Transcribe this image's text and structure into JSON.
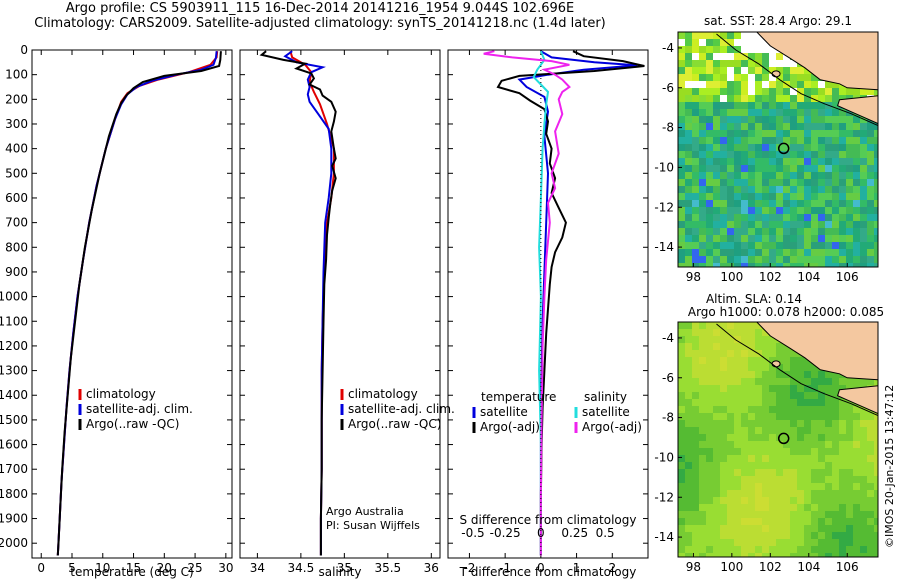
{
  "header": {
    "line1": "Argo profile: CS 5903911_115 16-Dec-2014 20141216_1954 9.044S 102.696E",
    "line2": "Climatology: CARS2009. Satellite-adjusted climatology: synTS_20141218.nc (1.4d later)"
  },
  "colors": {
    "climatology": "#e00000",
    "satellite": "#0000dd",
    "argo": "#000000",
    "argo_salinity": "#ee22ee",
    "satellite_salinity": "#22dddd",
    "ocean_dark": "#22aa77",
    "land": "#f4c8a0",
    "gap": "#ffffff"
  },
  "depth_axis": {
    "ticks": [
      0,
      100,
      200,
      300,
      400,
      500,
      600,
      700,
      800,
      900,
      1000,
      1100,
      1200,
      1300,
      1400,
      1500,
      1600,
      1700,
      1800,
      1900,
      2000
    ],
    "ylim": [
      2060,
      0
    ]
  },
  "chart_data": [
    {
      "type": "line",
      "panel": "temperature",
      "xlabel": "temperature (deg C)",
      "xlim": [
        -1.5,
        31
      ],
      "xticks": [
        0,
        5,
        10,
        15,
        20,
        25,
        30
      ],
      "legend": [
        "climatology",
        "satellite-adj. clim.",
        "Argo(..raw -QC)"
      ],
      "legend_position": "lower-center",
      "series": [
        {
          "name": "climatology",
          "points": [
            [
              28.6,
              5
            ],
            [
              28.5,
              30
            ],
            [
              27.5,
              60
            ],
            [
              24,
              90
            ],
            [
              19,
              120
            ],
            [
              16,
              145
            ],
            [
              14,
              175
            ],
            [
              13,
              210
            ],
            [
              12,
              280
            ],
            [
              10.5,
              400
            ],
            [
              9,
              550
            ],
            [
              7.8,
              700
            ],
            [
              6.8,
              850
            ],
            [
              5.9,
              1000
            ],
            [
              5.2,
              1150
            ],
            [
              4.6,
              1300
            ],
            [
              4.1,
              1450
            ],
            [
              3.7,
              1600
            ],
            [
              3.3,
              1750
            ],
            [
              3,
              1900
            ],
            [
              2.7,
              2050
            ]
          ]
        },
        {
          "name": "satellite-adj. clim.",
          "points": [
            [
              28.5,
              5
            ],
            [
              28.4,
              30
            ],
            [
              28,
              60
            ],
            [
              26,
              80
            ],
            [
              22,
              100
            ],
            [
              18,
              125
            ],
            [
              15.5,
              150
            ],
            [
              14,
              180
            ],
            [
              13,
              220
            ],
            [
              12,
              280
            ],
            [
              10.5,
              400
            ],
            [
              9,
              550
            ],
            [
              7.8,
              700
            ],
            [
              6.8,
              850
            ],
            [
              5.9,
              1000
            ],
            [
              5.2,
              1150
            ],
            [
              4.6,
              1300
            ],
            [
              4.1,
              1450
            ],
            [
              3.7,
              1600
            ],
            [
              3.3,
              1750
            ],
            [
              3,
              1900
            ],
            [
              2.7,
              2050
            ]
          ]
        },
        {
          "name": "Argo(..raw -QC)",
          "points": [
            [
              29.2,
              5
            ],
            [
              29.1,
              40
            ],
            [
              28.9,
              65
            ],
            [
              26,
              85
            ],
            [
              20,
              105
            ],
            [
              16.5,
              130
            ],
            [
              15,
              155
            ],
            [
              13.8,
              185
            ],
            [
              13,
              215
            ],
            [
              12.2,
              260
            ],
            [
              11,
              350
            ],
            [
              9.5,
              500
            ],
            [
              8.2,
              650
            ],
            [
              7.1,
              800
            ],
            [
              6.2,
              950
            ],
            [
              5.5,
              1100
            ],
            [
              4.8,
              1250
            ],
            [
              4.3,
              1400
            ],
            [
              3.8,
              1550
            ],
            [
              3.4,
              1700
            ],
            [
              3.1,
              1850
            ],
            [
              2.8,
              2000
            ],
            [
              2.7,
              2050
            ]
          ]
        }
      ]
    },
    {
      "type": "line",
      "panel": "salinity",
      "xlabel": "salinity",
      "xlim": [
        33.8,
        36.1
      ],
      "xticks": [
        34,
        34.5,
        35,
        35.5,
        36
      ],
      "xtick_labels": [
        "34",
        "34.5",
        "35",
        "35.5",
        "36"
      ],
      "legend": [
        "climatology",
        "satellite-adj. clim.",
        "Argo(..raw -QC)"
      ],
      "legend_position": "lower-right",
      "annotation": [
        "Argo Australia",
        "PI: Susan Wijffels"
      ],
      "series": [
        {
          "name": "climatology",
          "points": [
            [
              34.38,
              5
            ],
            [
              34.4,
              30
            ],
            [
              34.55,
              60
            ],
            [
              34.62,
              90
            ],
            [
              34.6,
              130
            ],
            [
              34.65,
              170
            ],
            [
              34.72,
              220
            ],
            [
              34.8,
              300
            ],
            [
              34.88,
              400
            ],
            [
              34.88,
              500
            ],
            [
              34.85,
              600
            ],
            [
              34.8,
              700
            ],
            [
              34.77,
              900
            ],
            [
              34.75,
              1100
            ],
            [
              34.74,
              1300
            ],
            [
              34.74,
              1500
            ],
            [
              34.74,
              1700
            ],
            [
              34.73,
              1900
            ],
            [
              34.73,
              2050
            ]
          ]
        },
        {
          "name": "satellite-adj. clim.",
          "points": [
            [
              34.4,
              5
            ],
            [
              34.32,
              25
            ],
            [
              34.45,
              50
            ],
            [
              34.75,
              70
            ],
            [
              34.62,
              90
            ],
            [
              34.58,
              120
            ],
            [
              34.6,
              150
            ],
            [
              34.58,
              180
            ],
            [
              34.6,
              210
            ],
            [
              34.7,
              260
            ],
            [
              34.82,
              320
            ],
            [
              34.85,
              400
            ],
            [
              34.85,
              500
            ],
            [
              34.82,
              600
            ],
            [
              34.78,
              700
            ],
            [
              34.76,
              900
            ],
            [
              34.75,
              1100
            ],
            [
              34.74,
              1300
            ],
            [
              34.74,
              1500
            ],
            [
              34.74,
              1700
            ],
            [
              34.73,
              1900
            ],
            [
              34.73,
              2050
            ]
          ]
        },
        {
          "name": "Argo(..raw -QC)",
          "points": [
            [
              34.1,
              5
            ],
            [
              34.05,
              20
            ],
            [
              34.3,
              40
            ],
            [
              34.55,
              55
            ],
            [
              34.45,
              75
            ],
            [
              34.62,
              95
            ],
            [
              34.65,
              115
            ],
            [
              34.6,
              140
            ],
            [
              34.72,
              160
            ],
            [
              34.75,
              185
            ],
            [
              34.85,
              210
            ],
            [
              34.9,
              250
            ],
            [
              34.88,
              290
            ],
            [
              34.85,
              330
            ],
            [
              34.88,
              400
            ],
            [
              34.9,
              440
            ],
            [
              34.86,
              470
            ],
            [
              34.9,
              520
            ],
            [
              34.86,
              570
            ],
            [
              34.84,
              620
            ],
            [
              34.82,
              680
            ],
            [
              34.8,
              750
            ],
            [
              34.79,
              850
            ],
            [
              34.77,
              950
            ],
            [
              34.76,
              1100
            ],
            [
              34.75,
              1300
            ],
            [
              34.74,
              1500
            ],
            [
              34.74,
              1700
            ],
            [
              34.73,
              1900
            ],
            [
              34.73,
              2050
            ]
          ]
        }
      ]
    },
    {
      "type": "line",
      "panel": "difference",
      "xlabel": "T difference from climatology",
      "xlabel_top": "S difference from climatology",
      "xlim": [
        -2.6,
        3.0
      ],
      "xticks": [
        -2,
        -1,
        0,
        1,
        2
      ],
      "sticks_pos": [
        -1.9,
        -1.0,
        0,
        0.95,
        1.8
      ],
      "sticks_labels": [
        "-0.5",
        "-0.25",
        "0",
        "0.25",
        "0.5"
      ],
      "legend": {
        "left_header": "temperature",
        "right_header": "salinity",
        "left": [
          "satellite",
          "Argo(-adj)"
        ],
        "right": [
          "satellite",
          "Argo(-adj)"
        ]
      },
      "legend_position": "lower-center",
      "series": [
        {
          "name": "T satellite",
          "points": [
            [
              0,
              5
            ],
            [
              0.3,
              30
            ],
            [
              1.5,
              50
            ],
            [
              2.7,
              62
            ],
            [
              1.2,
              80
            ],
            [
              0.2,
              100
            ],
            [
              -0.6,
              120
            ],
            [
              -0.4,
              150
            ],
            [
              0.1,
              190
            ],
            [
              0.2,
              250
            ],
            [
              0.1,
              350
            ],
            [
              0.2,
              500
            ],
            [
              0.15,
              700
            ],
            [
              0.1,
              900
            ],
            [
              0.05,
              1100
            ],
            [
              0.02,
              1300
            ],
            [
              0,
              1600
            ],
            [
              0,
              2050
            ]
          ]
        },
        {
          "name": "T Argo(-adj)",
          "points": [
            [
              0.9,
              5
            ],
            [
              1.2,
              25
            ],
            [
              2.3,
              45
            ],
            [
              2.6,
              55
            ],
            [
              2.9,
              65
            ],
            [
              1.5,
              85
            ],
            [
              -0.6,
              105
            ],
            [
              -1.1,
              125
            ],
            [
              -1.2,
              150
            ],
            [
              -0.6,
              175
            ],
            [
              -0.3,
              205
            ],
            [
              0.1,
              240
            ],
            [
              0.2,
              290
            ],
            [
              0.15,
              340
            ],
            [
              0.3,
              400
            ],
            [
              0.25,
              460
            ],
            [
              0.4,
              520
            ],
            [
              0.3,
              580
            ],
            [
              0.5,
              640
            ],
            [
              0.7,
              700
            ],
            [
              0.6,
              760
            ],
            [
              0.4,
              820
            ],
            [
              0.3,
              880
            ],
            [
              0.25,
              950
            ],
            [
              0.2,
              1050
            ],
            [
              0.15,
              1150
            ],
            [
              0.1,
              1300
            ],
            [
              0.05,
              1450
            ],
            [
              0.02,
              1600
            ],
            [
              0,
              1800
            ],
            [
              0,
              2050
            ]
          ]
        },
        {
          "name": "S satellite",
          "points": [
            [
              0,
              5
            ],
            [
              0.1,
              40
            ],
            [
              -0.1,
              80
            ],
            [
              -0.2,
              110
            ],
            [
              0,
              140
            ],
            [
              0.2,
              170
            ],
            [
              0.15,
              220
            ],
            [
              0.1,
              300
            ],
            [
              0.05,
              400
            ],
            [
              0,
              600
            ],
            [
              -0.05,
              800
            ],
            [
              0,
              1000
            ],
            [
              -0.05,
              1300
            ],
            [
              0,
              1600
            ],
            [
              0,
              2050
            ]
          ]
        },
        {
          "name": "S Argo(-adj)",
          "points": [
            [
              -1.3,
              5
            ],
            [
              -1.6,
              15
            ],
            [
              -0.8,
              30
            ],
            [
              0.3,
              45
            ],
            [
              0.8,
              60
            ],
            [
              0.1,
              80
            ],
            [
              0.4,
              100
            ],
            [
              0.6,
              120
            ],
            [
              0.8,
              150
            ],
            [
              0.6,
              170
            ],
            [
              0.5,
              200
            ],
            [
              0.6,
              260
            ],
            [
              0.4,
              330
            ],
            [
              0.5,
              420
            ],
            [
              0.3,
              500
            ],
            [
              0.4,
              560
            ],
            [
              0.2,
              620
            ],
            [
              0.25,
              700
            ],
            [
              0.15,
              850
            ],
            [
              0.1,
              1000
            ],
            [
              0.05,
              1200
            ],
            [
              0.02,
              1500
            ],
            [
              0,
              1800
            ],
            [
              0,
              2050
            ]
          ]
        }
      ]
    },
    {
      "type": "heatmap",
      "panel": "sst_map",
      "title": "sat. SST: 28.4  Argo: 29.1",
      "xlim": [
        97.2,
        107.6
      ],
      "ylim": [
        -15,
        -3.2
      ],
      "xticks": [
        98,
        100,
        102,
        104,
        106
      ],
      "yticks": [
        -4,
        -6,
        -8,
        -10,
        -12,
        -14
      ],
      "argo_position": [
        102.696,
        -9.044
      ]
    },
    {
      "type": "heatmap",
      "panel": "sla_map",
      "title": [
        "Altim. SLA: 0.14",
        "Argo h1000: 0.078 h2000: 0.085"
      ],
      "xlim": [
        97.2,
        107.6
      ],
      "ylim": [
        -15,
        -3.2
      ],
      "xticks": [
        98,
        100,
        102,
        104,
        106
      ],
      "yticks": [
        -4,
        -6,
        -8,
        -10,
        -12,
        -14
      ],
      "argo_position": [
        102.696,
        -9.044
      ]
    }
  ],
  "footer": {
    "stamp": "©IMOS 20-Jan-2015 13:47:12"
  }
}
